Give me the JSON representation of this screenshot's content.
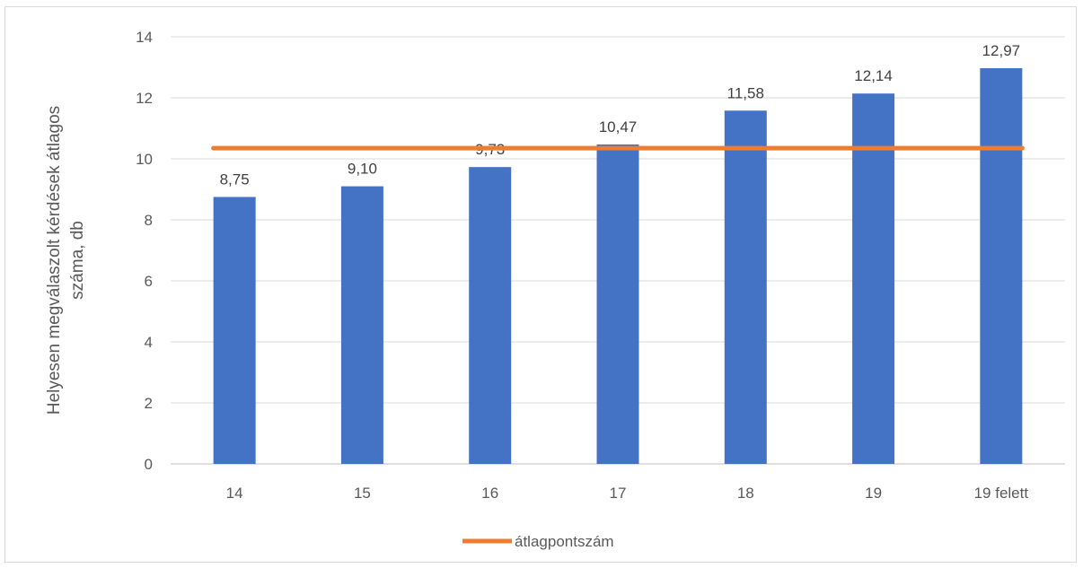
{
  "chart_data": {
    "type": "bar",
    "title": "",
    "xlabel": "",
    "ylabel": "Helyesen megválaszolt kérdések átlagos száma, db",
    "ylabel_lines": [
      "Helyesen megválaszolt kérdések átlagos",
      "száma, db"
    ],
    "categories": [
      "14",
      "15",
      "16",
      "17",
      "18",
      "19",
      "19 felett"
    ],
    "values": [
      8.75,
      9.1,
      9.73,
      10.47,
      11.58,
      12.14,
      12.97
    ],
    "data_labels": [
      "8,75",
      "9,10",
      "9,73",
      "10,47",
      "11,58",
      "12,14",
      "12,97"
    ],
    "ylim": [
      0,
      14
    ],
    "yticks": [
      0,
      2,
      4,
      6,
      8,
      10,
      12,
      14
    ],
    "grid": true,
    "bar_color": "#4472C4",
    "line_series": {
      "name": "átlagpontszám",
      "value": 10.35,
      "color": "#ED7D31"
    },
    "legend_position": "bottom"
  }
}
